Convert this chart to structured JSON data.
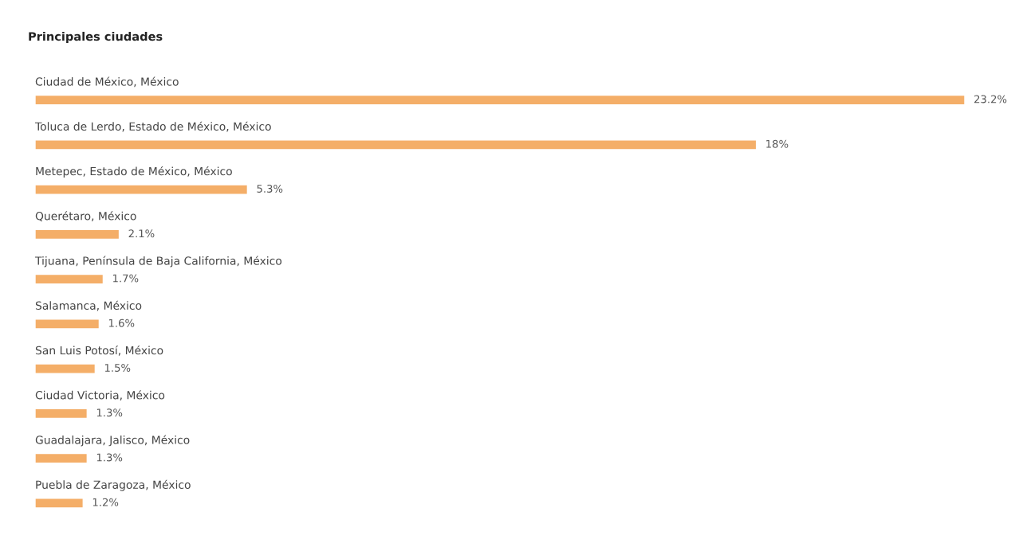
{
  "chart_data": {
    "type": "bar",
    "orientation": "horizontal",
    "title": "Principales ciudades",
    "categories": [
      "Ciudad de México, México",
      "Toluca de Lerdo, Estado de México, México",
      "Metepec, Estado de México, México",
      "Querétaro, México",
      "Tijuana, Península de Baja California, México",
      "Salamanca, México",
      "San Luis Potosí, México",
      "Ciudad Victoria, México",
      "Guadalajara, Jalisco, México",
      "Puebla de Zaragoza, México"
    ],
    "values": [
      23.2,
      18,
      5.3,
      2.1,
      1.7,
      1.6,
      1.5,
      1.3,
      1.3,
      1.2
    ],
    "value_labels": [
      "23.2%",
      "18%",
      "5.3%",
      "2.1%",
      "1.7%",
      "1.6%",
      "1.5%",
      "1.3%",
      "1.3%",
      "1.2%"
    ],
    "color": "#f4ae68"
  }
}
